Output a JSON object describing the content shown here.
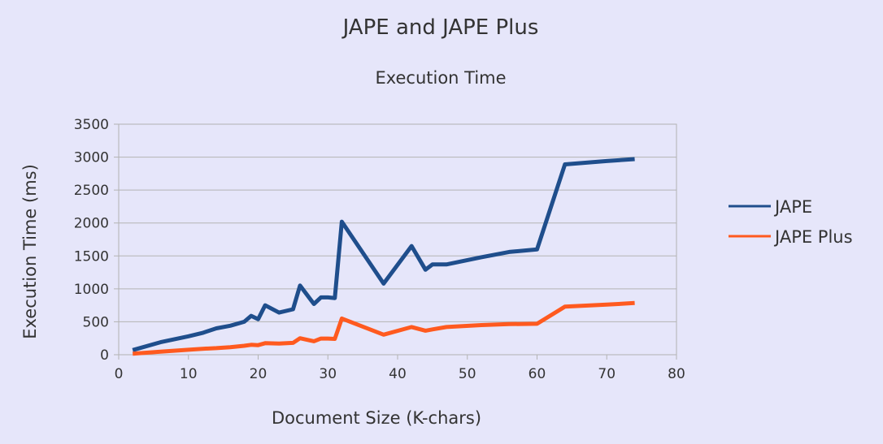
{
  "chart_data": {
    "type": "line",
    "title": "JAPE and JAPE Plus",
    "subtitle": "Execution Time",
    "xlabel": "Document Size (K-chars)",
    "ylabel": "Execution Time (ms)",
    "xlim": [
      0,
      80
    ],
    "ylim": [
      0,
      3500
    ],
    "xticks": [
      0,
      10,
      20,
      30,
      40,
      50,
      60,
      70,
      80
    ],
    "yticks": [
      0,
      500,
      1000,
      1500,
      2000,
      2500,
      3000,
      3500
    ],
    "grid": "horizontal",
    "legend_position": "right",
    "series": [
      {
        "name": "JAPE",
        "color": "#1f4e8c",
        "points": [
          [
            2,
            70
          ],
          [
            6,
            190
          ],
          [
            10,
            280
          ],
          [
            12,
            330
          ],
          [
            14,
            400
          ],
          [
            16,
            440
          ],
          [
            18,
            500
          ],
          [
            19,
            590
          ],
          [
            20,
            540
          ],
          [
            21,
            750
          ],
          [
            23,
            640
          ],
          [
            25,
            690
          ],
          [
            26,
            1050
          ],
          [
            28,
            770
          ],
          [
            29,
            870
          ],
          [
            30,
            870
          ],
          [
            31,
            860
          ],
          [
            32,
            2020
          ],
          [
            38,
            1080
          ],
          [
            42,
            1650
          ],
          [
            44,
            1290
          ],
          [
            45,
            1370
          ],
          [
            47,
            1370
          ],
          [
            52,
            1480
          ],
          [
            56,
            1560
          ],
          [
            60,
            1600
          ],
          [
            64,
            2890
          ],
          [
            70,
            2940
          ],
          [
            74,
            2970
          ]
        ]
      },
      {
        "name": "JAPE Plus",
        "color": "#ff5a1f",
        "points": [
          [
            2,
            15
          ],
          [
            6,
            45
          ],
          [
            10,
            75
          ],
          [
            12,
            90
          ],
          [
            14,
            100
          ],
          [
            16,
            115
          ],
          [
            18,
            135
          ],
          [
            19,
            150
          ],
          [
            20,
            145
          ],
          [
            21,
            175
          ],
          [
            23,
            170
          ],
          [
            25,
            180
          ],
          [
            26,
            250
          ],
          [
            28,
            205
          ],
          [
            29,
            245
          ],
          [
            30,
            245
          ],
          [
            31,
            240
          ],
          [
            32,
            550
          ],
          [
            38,
            305
          ],
          [
            42,
            420
          ],
          [
            44,
            365
          ],
          [
            45,
            385
          ],
          [
            47,
            420
          ],
          [
            52,
            450
          ],
          [
            56,
            465
          ],
          [
            60,
            470
          ],
          [
            64,
            730
          ],
          [
            70,
            760
          ],
          [
            74,
            785
          ]
        ]
      }
    ]
  }
}
